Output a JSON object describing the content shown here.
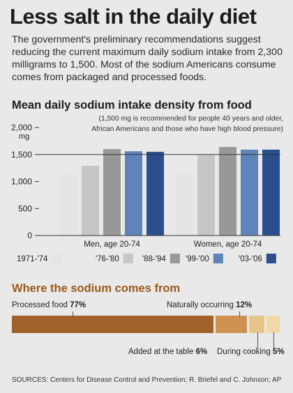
{
  "headline": "Less salt in the daily diet",
  "intro": "The government's preliminary recommendations suggest reducing the current maximum daily sodium intake from 2,300 milligrams to 1,500. Most of the sodium Americans consume comes from packaged and processed foods.",
  "chart_data": [
    {
      "type": "bar",
      "title": "Mean daily sodium intake density from food",
      "note": "(1,500 mg is recommended for people 40 years and older, African Americans and those who have high blood pressure)",
      "unit_label": "mg",
      "ylim": [
        0,
        2000
      ],
      "yticks": [
        "2,000",
        "1,500",
        "1,000",
        "500",
        "0"
      ],
      "reference_line": 1500,
      "categories": [
        "Men, age 20-74",
        "Women, age 20-74"
      ],
      "series": [
        {
          "name": "1971-'74",
          "color": "#e4e4e4",
          "values": [
            1130,
            1140
          ]
        },
        {
          "name": "'76-'80",
          "color": "#c6c6c6",
          "values": [
            1290,
            1490
          ]
        },
        {
          "name": "'88-'94",
          "color": "#989898",
          "values": [
            1600,
            1640
          ]
        },
        {
          "name": "'99-'00",
          "color": "#5f84b7",
          "values": [
            1560,
            1590
          ]
        },
        {
          "name": "'03-'06",
          "color": "#2a4f8c",
          "values": [
            1550,
            1590
          ]
        }
      ]
    },
    {
      "type": "bar",
      "title": "Where the sodium comes from",
      "categories": [
        "Processed food",
        "Naturally occurring",
        "Added at the table",
        "During cooking"
      ],
      "values": [
        77,
        12,
        6,
        5
      ],
      "value_labels": [
        "77%",
        "12%",
        "6%",
        "5%"
      ],
      "colors": [
        "#a0622a",
        "#cf9150",
        "#e6c58b",
        "#f0d9a4"
      ]
    }
  ],
  "sources": "SOURCES: Centers for Disease Control and Prevention; R. Briefel and C. Johnson; AP"
}
